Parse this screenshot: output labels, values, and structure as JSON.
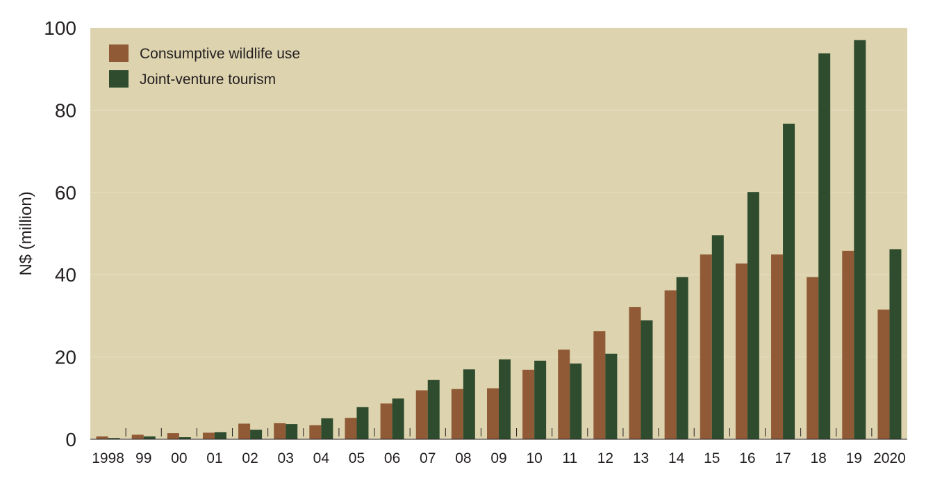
{
  "chart_data": {
    "type": "bar",
    "title": "",
    "xlabel": "",
    "ylabel": "N$ (million)",
    "ylim": [
      0,
      100
    ],
    "yticks": [
      "0",
      "20",
      "40",
      "60",
      "80",
      "100"
    ],
    "grid": true,
    "legend_position": "top-left",
    "background_color": "#ddd3af",
    "categories": [
      "1998",
      "99",
      "00",
      "01",
      "02",
      "03",
      "04",
      "05",
      "06",
      "07",
      "08",
      "09",
      "10",
      "11",
      "12",
      "13",
      "14",
      "15",
      "16",
      "17",
      "18",
      "19",
      "2020"
    ],
    "series": [
      {
        "name": "Consumptive wildlife use",
        "color": "#8f5a35",
        "values": [
          0.7,
          1.1,
          1.5,
          1.6,
          3.8,
          3.9,
          3.4,
          5.2,
          8.7,
          11.9,
          12.2,
          12.4,
          16.9,
          21.8,
          26.3,
          32.1,
          36.2,
          44.9,
          42.7,
          44.9,
          39.4,
          45.8,
          31.5
        ]
      },
      {
        "name": "Joint-venture tourism",
        "color": "#2f4d2e",
        "values": [
          0.3,
          0.7,
          0.5,
          1.7,
          2.3,
          3.7,
          5.1,
          7.8,
          9.9,
          14.4,
          17.0,
          19.4,
          19.1,
          18.4,
          20.8,
          28.9,
          39.4,
          49.6,
          60.1,
          76.7,
          93.8,
          97.0,
          46.2
        ]
      }
    ]
  }
}
